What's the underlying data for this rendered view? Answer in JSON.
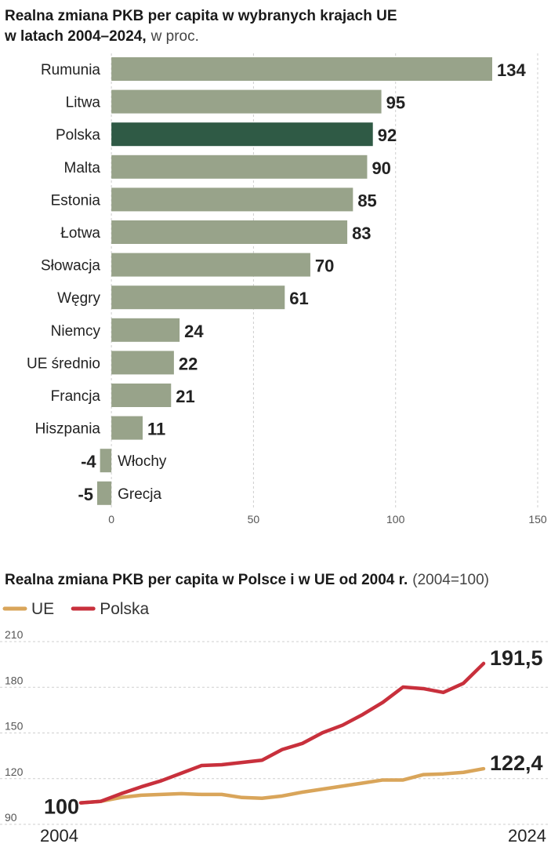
{
  "chart_data": [
    {
      "type": "hbar",
      "title": [
        "Realna zmiana PKB per capita w wybranych krajach UE",
        "w latach 2004–2024,"
      ],
      "subtitle": "w proc.",
      "categories": [
        "Rumunia",
        "Litwa",
        "Polska",
        "Malta",
        "Estonia",
        "Łotwa",
        "Słowacja",
        "Węgry",
        "Niemcy",
        "UE średnio",
        "Francja",
        "Hiszpania",
        "Włochy",
        "Grecja"
      ],
      "values": [
        134,
        95,
        92,
        90,
        85,
        83,
        70,
        61,
        24,
        22,
        21,
        11,
        -4,
        -5
      ],
      "colors": [
        "#98a38a",
        "#98a38a",
        "#2f5a45",
        "#98a38a",
        "#98a38a",
        "#98a38a",
        "#98a38a",
        "#98a38a",
        "#98a38a",
        "#98a38a",
        "#98a38a",
        "#98a38a",
        "#98a38a",
        "#98a38a"
      ],
      "xlim": [
        -5,
        150
      ],
      "xticks": [
        0,
        50,
        100,
        150
      ],
      "grid": true
    },
    {
      "type": "line",
      "title": "Realna zmiana PKB per capita w Polsce i w UE od 2004 r.",
      "subtitle": "(2004=100)",
      "x": [
        2004,
        2005,
        2006,
        2007,
        2008,
        2009,
        2010,
        2011,
        2012,
        2013,
        2014,
        2015,
        2016,
        2017,
        2018,
        2019,
        2020,
        2021,
        2022,
        2023,
        2024
      ],
      "series": [
        {
          "name": "UE",
          "color": "#d9a55a",
          "values": [
            100,
            101,
            103.5,
            105,
            105.5,
            106,
            105.5,
            105.5,
            103.5,
            103,
            104.5,
            107,
            109,
            111,
            113,
            115,
            115,
            118.5,
            119,
            120,
            122.4
          ],
          "value_labels": [
            "100",
            null,
            null,
            null,
            null,
            null,
            null,
            null,
            null,
            null,
            null,
            null,
            null,
            null,
            null,
            null,
            null,
            null,
            null,
            null,
            "122,4"
          ]
        },
        {
          "name": "Polska",
          "color": "#c8303c",
          "values": [
            100,
            101,
            106,
            110.5,
            114.5,
            119.5,
            124.5,
            125,
            126.5,
            128,
            135,
            139,
            146,
            151,
            158,
            166,
            176,
            175,
            172.5,
            178.5,
            191.5
          ],
          "value_labels": [
            null,
            null,
            null,
            null,
            null,
            null,
            null,
            null,
            null,
            null,
            null,
            null,
            null,
            null,
            null,
            null,
            null,
            null,
            null,
            null,
            "191,5"
          ]
        }
      ],
      "xlim": [
        2004,
        2024
      ],
      "xticks": [
        2004,
        2024
      ],
      "ylim": [
        90,
        210
      ],
      "yticks": [
        90,
        120,
        150,
        180,
        210
      ],
      "grid": true,
      "legend": "top-left"
    }
  ]
}
